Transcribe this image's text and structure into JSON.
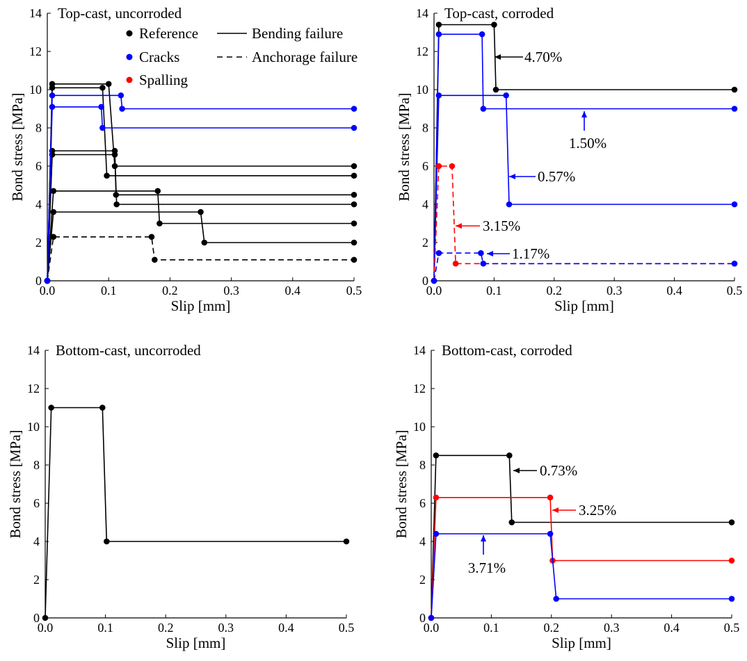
{
  "colors": {
    "black": "#000000",
    "blue": "#0000ff",
    "red": "#ff0000"
  },
  "legend": {
    "markers": [
      {
        "label": "Reference",
        "color": "black"
      },
      {
        "label": "Cracks",
        "color": "blue"
      },
      {
        "label": "Spalling",
        "color": "red"
      }
    ],
    "lines": [
      {
        "label": "Bending failure",
        "style": "solid"
      },
      {
        "label": "Anchorage failure",
        "style": "dashed"
      }
    ]
  },
  "chart_data": [
    {
      "type": "line",
      "title": "Top-cast, uncorroded",
      "xlabel": "Slip [mm]",
      "ylabel": "Bond stress [MPa]",
      "xlim": [
        0,
        0.5
      ],
      "ylim": [
        0,
        14
      ],
      "xticks": [
        "0.0",
        "0.1",
        "0.2",
        "0.3",
        "0.4",
        "0.5"
      ],
      "yticks": [
        "0",
        "2",
        "4",
        "6",
        "8",
        "10",
        "12",
        "14"
      ],
      "series": [
        {
          "color": "black",
          "style": "solid",
          "points": [
            [
              0,
              0
            ],
            [
              0.008,
              10.3
            ],
            [
              0.1,
              10.3
            ],
            [
              0.11,
              6.0
            ],
            [
              0.5,
              6.0
            ]
          ]
        },
        {
          "color": "black",
          "style": "solid",
          "points": [
            [
              0,
              0
            ],
            [
              0.008,
              10.1
            ],
            [
              0.09,
              10.1
            ],
            [
              0.097,
              5.5
            ],
            [
              0.5,
              5.5
            ]
          ]
        },
        {
          "color": "black",
          "style": "solid",
          "points": [
            [
              0,
              0
            ],
            [
              0.008,
              6.8
            ],
            [
              0.11,
              6.8
            ],
            [
              0.112,
              4.5
            ],
            [
              0.5,
              4.5
            ]
          ]
        },
        {
          "color": "black",
          "style": "solid",
          "points": [
            [
              0,
              0
            ],
            [
              0.008,
              6.6
            ],
            [
              0.11,
              6.6
            ],
            [
              0.113,
              4.0
            ],
            [
              0.5,
              4.0
            ]
          ]
        },
        {
          "color": "black",
          "style": "solid",
          "points": [
            [
              0,
              0
            ],
            [
              0.01,
              4.7
            ],
            [
              0.18,
              4.7
            ],
            [
              0.183,
              3.0
            ],
            [
              0.5,
              3.0
            ]
          ]
        },
        {
          "color": "black",
          "style": "solid",
          "points": [
            [
              0,
              0
            ],
            [
              0.01,
              3.6
            ],
            [
              0.25,
              3.6
            ],
            [
              0.256,
              2.0
            ],
            [
              0.5,
              2.0
            ]
          ]
        },
        {
          "color": "black",
          "style": "dashed",
          "points": [
            [
              0,
              0
            ],
            [
              0.01,
              2.3
            ],
            [
              0.17,
              2.3
            ],
            [
              0.175,
              1.1
            ],
            [
              0.5,
              1.1
            ]
          ]
        },
        {
          "color": "blue",
          "style": "solid",
          "points": [
            [
              0,
              0
            ],
            [
              0.008,
              9.7
            ],
            [
              0.12,
              9.7
            ],
            [
              0.122,
              9.0
            ],
            [
              0.5,
              9.0
            ]
          ]
        },
        {
          "color": "blue",
          "style": "solid",
          "points": [
            [
              0,
              0
            ],
            [
              0.008,
              9.1
            ],
            [
              0.088,
              9.1
            ],
            [
              0.09,
              8.0
            ],
            [
              0.5,
              8.0
            ]
          ]
        }
      ],
      "annotations": []
    },
    {
      "type": "line",
      "title": "Top-cast, corroded",
      "xlabel": "Slip [mm]",
      "ylabel": "Bond stress [MPa]",
      "xlim": [
        0,
        0.5
      ],
      "ylim": [
        0,
        14
      ],
      "xticks": [
        "0.0",
        "0.1",
        "0.2",
        "0.3",
        "0.4",
        "0.5"
      ],
      "yticks": [
        "0",
        "2",
        "4",
        "6",
        "8",
        "10",
        "12",
        "14"
      ],
      "series": [
        {
          "color": "black",
          "style": "solid",
          "points": [
            [
              0,
              0
            ],
            [
              0.008,
              13.4
            ],
            [
              0.1,
              13.4
            ],
            [
              0.103,
              10.0
            ],
            [
              0.5,
              10.0
            ]
          ]
        },
        {
          "color": "blue",
          "style": "solid",
          "points": [
            [
              0,
              0
            ],
            [
              0.008,
              12.9
            ],
            [
              0.08,
              12.9
            ],
            [
              0.082,
              9.0
            ],
            [
              0.5,
              9.0
            ]
          ]
        },
        {
          "color": "blue",
          "style": "solid",
          "points": [
            [
              0,
              0
            ],
            [
              0.008,
              9.7
            ],
            [
              0.12,
              9.7
            ],
            [
              0.125,
              4.0
            ],
            [
              0.5,
              4.0
            ]
          ]
        },
        {
          "color": "red",
          "style": "dashed",
          "points": [
            [
              0,
              0
            ],
            [
              0.008,
              6.0
            ],
            [
              0.03,
              6.0
            ],
            [
              0.036,
              0.9
            ],
            [
              0.5,
              0.9
            ]
          ]
        },
        {
          "color": "blue",
          "style": "dashed",
          "points": [
            [
              0,
              0
            ],
            [
              0.008,
              1.45
            ],
            [
              0.078,
              1.45
            ],
            [
              0.082,
              0.9
            ],
            [
              0.5,
              0.9
            ]
          ]
        }
      ],
      "annotations": [
        {
          "text": "4.70%",
          "color": "black"
        },
        {
          "text": "1.50%",
          "color": "blue"
        },
        {
          "text": "0.57%",
          "color": "blue"
        },
        {
          "text": "3.15%",
          "color": "red"
        },
        {
          "text": "1.17%",
          "color": "blue"
        }
      ]
    },
    {
      "type": "line",
      "title": "Bottom-cast, uncorroded",
      "xlabel": "Slip [mm]",
      "ylabel": "Bond stress [MPa]",
      "xlim": [
        0,
        0.5
      ],
      "ylim": [
        0,
        14
      ],
      "xticks": [
        "0.0",
        "0.1",
        "0.2",
        "0.3",
        "0.4",
        "0.5"
      ],
      "yticks": [
        "0",
        "2",
        "4",
        "6",
        "8",
        "10",
        "12",
        "14"
      ],
      "series": [
        {
          "color": "black",
          "style": "solid",
          "points": [
            [
              0,
              0
            ],
            [
              0.01,
              11.0
            ],
            [
              0.095,
              11.0
            ],
            [
              0.102,
              4.0
            ],
            [
              0.5,
              4.0
            ]
          ]
        }
      ],
      "annotations": []
    },
    {
      "type": "line",
      "title": "Bottom-cast, corroded",
      "xlabel": "Slip [mm]",
      "ylabel": "Bond stress [MPa]",
      "xlim": [
        0,
        0.5
      ],
      "ylim": [
        0,
        14
      ],
      "xticks": [
        "0.0",
        "0.1",
        "0.2",
        "0.3",
        "0.4",
        "0.5"
      ],
      "yticks": [
        "0",
        "2",
        "4",
        "6",
        "8",
        "10",
        "12",
        "14"
      ],
      "series": [
        {
          "color": "black",
          "style": "solid",
          "points": [
            [
              0,
              0
            ],
            [
              0.008,
              8.5
            ],
            [
              0.13,
              8.5
            ],
            [
              0.134,
              5.0
            ],
            [
              0.5,
              5.0
            ]
          ]
        },
        {
          "color": "red",
          "style": "solid",
          "points": [
            [
              0,
              0
            ],
            [
              0.008,
              6.3
            ],
            [
              0.198,
              6.3
            ],
            [
              0.202,
              3.0
            ],
            [
              0.5,
              3.0
            ]
          ]
        },
        {
          "color": "blue",
          "style": "solid",
          "points": [
            [
              0,
              0
            ],
            [
              0.008,
              4.4
            ],
            [
              0.198,
              4.4
            ],
            [
              0.208,
              1.0
            ],
            [
              0.5,
              1.0
            ]
          ]
        }
      ],
      "annotations": [
        {
          "text": "0.73%",
          "color": "black"
        },
        {
          "text": "3.25%",
          "color": "red"
        },
        {
          "text": "3.71%",
          "color": "blue"
        }
      ]
    }
  ]
}
